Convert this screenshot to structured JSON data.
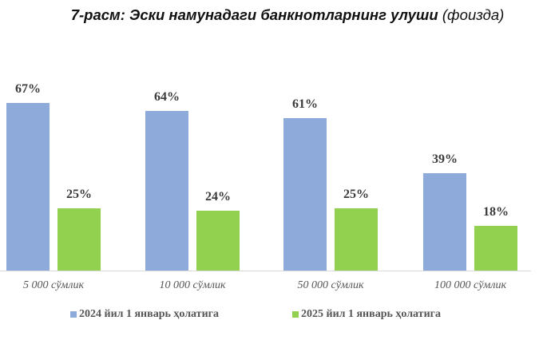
{
  "title": {
    "main": "7-расм: Эски намунадаги банкнотларнинг улуши",
    "unit": "(фоизда)"
  },
  "colors": {
    "series_2024": "#8eaadb",
    "series_2025": "#92d050"
  },
  "legend": [
    {
      "label": "2024 йил 1 январь ҳолатига",
      "color": "#8eaadb"
    },
    {
      "label": "2025 йил 1 январь ҳолатига",
      "color": "#92d050"
    }
  ],
  "chart_data": {
    "type": "bar",
    "title": "7-расм: Эски намунадаги банкнотларнинг улуши (фоизда)",
    "xlabel": "",
    "ylabel": "",
    "categories": [
      "5 000 сўмлик",
      "10 000 сўмлик",
      "50 000 сўмлик",
      "100 000 сўмлик"
    ],
    "series": [
      {
        "name": "2024 йил 1 январь ҳолатига",
        "values": [
          67,
          64,
          61,
          39
        ],
        "labels": [
          "67%",
          "64%",
          "61%",
          "39%"
        ]
      },
      {
        "name": "2025 йил 1 январь ҳолатига",
        "values": [
          25,
          24,
          25,
          18
        ],
        "labels": [
          "25%",
          "24%",
          "25%",
          "18%"
        ]
      }
    ],
    "ylim": [
      0,
      70
    ],
    "grid": false,
    "legend_position": "bottom",
    "data_labels": true
  }
}
